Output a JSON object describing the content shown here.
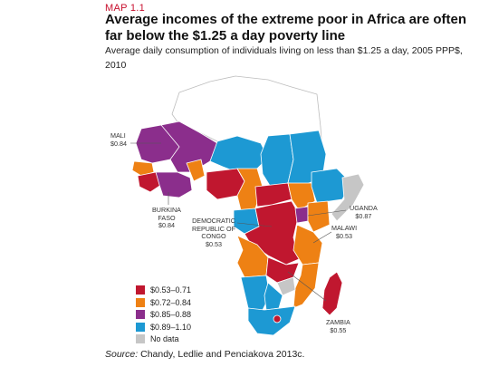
{
  "header": {
    "map_label": "MAP 1.1",
    "title": "Average incomes of the extreme poor in Africa are often far below the $1.25 a day poverty line",
    "subtitle": "Average daily consumption of individuals living on less than $1.25 a day, 2005 PPP$, 2010"
  },
  "callouts": [
    {
      "name": "MALI",
      "value": "$0.84"
    },
    {
      "name": "BURKINA FASO",
      "value": "$0.84"
    },
    {
      "name": "DEMOCRATIC REPUBLIC OF CONGO",
      "value": "$0.53"
    },
    {
      "name": "UGANDA",
      "value": "$0.87"
    },
    {
      "name": "MALAWI",
      "value": "$0.53"
    },
    {
      "name": "ZAMBIA",
      "value": "$0.55"
    }
  ],
  "legend": [
    {
      "label": "$0.53–0.71",
      "color": "#c0172f"
    },
    {
      "label": "$0.72–0.84",
      "color": "#ee8114"
    },
    {
      "label": "$0.85–0.88",
      "color": "#8b2e8c"
    },
    {
      "label": "$0.89–1.10",
      "color": "#1d99d3"
    },
    {
      "label": "No data",
      "color": "#c6c6c6"
    }
  ],
  "source": {
    "label": "Source:",
    "text": "Chandy, Ledlie and Penciakova 2013c."
  }
}
